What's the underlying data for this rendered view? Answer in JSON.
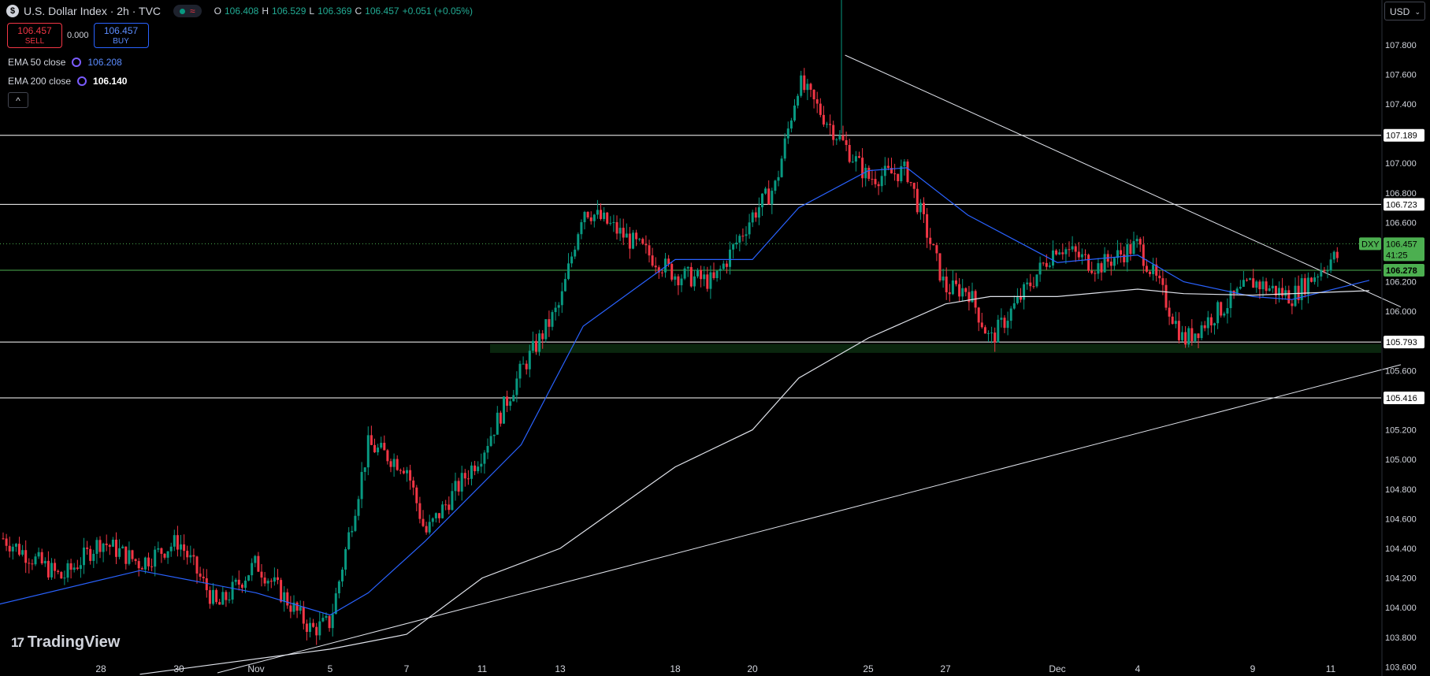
{
  "header": {
    "symbol_icon": "$",
    "title": "U.S. Dollar Index · 2h · TVC",
    "open_label": "O",
    "open": "106.408",
    "high_label": "H",
    "high": "106.529",
    "low_label": "L",
    "low": "106.369",
    "close_label": "C",
    "close": "106.457",
    "change": "+0.051 (+0.05%)"
  },
  "trade": {
    "sell_price": "106.457",
    "sell_label": "SELL",
    "spread": "0.000",
    "buy_price": "106.457",
    "buy_label": "BUY"
  },
  "indicators": [
    {
      "label": "EMA 50 close",
      "value": "106.208",
      "color": "#2962ff"
    },
    {
      "label": "EMA 200 close",
      "value": "106.140",
      "color": "#ffffff"
    }
  ],
  "collapse_glyph": "^",
  "currency": "USD",
  "currency_icon": "chevron-down-icon",
  "logo_text": "TradingView",
  "colors": {
    "up": "#089981",
    "down": "#f23645",
    "ema50": "#2962ff",
    "ema200": "#e0e3eb",
    "bg": "#000000"
  },
  "chart_data": {
    "type": "candlestick",
    "title": "U.S. Dollar Index · 2h · TVC",
    "ylim": [
      103.5,
      107.98
    ],
    "y_ticks": [
      "107.800",
      "107.600",
      "107.400",
      "107.200",
      "107.000",
      "106.800",
      "106.600",
      "106.400",
      "106.200",
      "106.000",
      "105.800",
      "105.600",
      "105.400",
      "105.200",
      "105.000",
      "104.800",
      "104.600",
      "104.400",
      "104.200",
      "104.000",
      "103.800",
      "103.600"
    ],
    "x_labels": [
      "28",
      "30",
      "Nov",
      "5",
      "7",
      "11",
      "13",
      "18",
      "20",
      "25",
      "27",
      "Dec",
      "4",
      "9",
      "11"
    ],
    "last_price": {
      "symbol": "DXY",
      "value": "106.457",
      "countdown": "41:25"
    },
    "horizontal_levels": [
      {
        "value": "107.189",
        "color": "#ffffff"
      },
      {
        "value": "106.723",
        "color": "#ffffff"
      },
      {
        "value": "106.278",
        "color": "#4caf50"
      },
      {
        "value": "105.793",
        "color": "#ffffff"
      },
      {
        "value": "105.416",
        "color": "#ffffff"
      }
    ],
    "trend_lines": [
      {
        "from": [
          "Oct 31",
          103.56
        ],
        "to": [
          "Dec 12",
          105.64
        ]
      },
      {
        "from": [
          "Nov 24",
          107.73
        ],
        "to": [
          "Dec 12",
          106.03
        ]
      }
    ],
    "price_path": [
      [
        "Oct 25",
        104.55
      ],
      [
        "Oct 27",
        104.2
      ],
      [
        "Oct 28",
        104.45
      ],
      [
        "Oct 29",
        104.3
      ],
      [
        "Oct 30",
        104.45
      ],
      [
        "Oct 31",
        104.0
      ],
      [
        "Nov 1",
        104.3
      ],
      [
        "Nov 4",
        103.85
      ],
      [
        "Nov 5",
        103.9
      ],
      [
        "Nov 6",
        105.1
      ],
      [
        "Nov 7",
        104.95
      ],
      [
        "Nov 8",
        104.5
      ],
      [
        "Nov 11",
        105.05
      ],
      [
        "Nov 12",
        105.6
      ],
      [
        "Nov 13",
        106.05
      ],
      [
        "Nov 14",
        106.7
      ],
      [
        "Nov 15",
        106.6
      ],
      [
        "Nov 18",
        106.25
      ],
      [
        "Nov 19",
        106.2
      ],
      [
        "Nov 20",
        106.65
      ],
      [
        "Nov 21",
        106.85
      ],
      [
        "Nov 22",
        107.55
      ],
      [
        "Nov 25",
        106.9
      ],
      [
        "Nov 26",
        106.95
      ],
      [
        "Nov 27",
        106.15
      ],
      [
        "Nov 28",
        106.15
      ],
      [
        "Nov 29",
        105.8
      ],
      [
        "Dec 2",
        106.45
      ],
      [
        "Dec 3",
        106.3
      ],
      [
        "Dec 4",
        106.45
      ],
      [
        "Dec 5",
        106.15
      ],
      [
        "Dec 6",
        105.8
      ],
      [
        "Dec 9",
        106.2
      ],
      [
        "Dec 10",
        106.1
      ],
      [
        "Dec 11",
        106.35
      ],
      [
        "Dec 12",
        106.46
      ]
    ],
    "ema50_path": [
      [
        "Oct 25",
        104.0
      ],
      [
        "Oct 29",
        104.25
      ],
      [
        "Nov 1",
        104.1
      ],
      [
        "Nov 5",
        103.95
      ],
      [
        "Nov 6",
        104.1
      ],
      [
        "Nov 8",
        104.45
      ],
      [
        "Nov 12",
        105.1
      ],
      [
        "Nov 14",
        105.9
      ],
      [
        "Nov 18",
        106.35
      ],
      [
        "Nov 20",
        106.35
      ],
      [
        "Nov 22",
        106.7
      ],
      [
        "Nov 25",
        106.95
      ],
      [
        "Nov 26",
        106.97
      ],
      [
        "Nov 28",
        106.65
      ],
      [
        "Dec 2",
        106.33
      ],
      [
        "Dec 4",
        106.38
      ],
      [
        "Dec 6",
        106.2
      ],
      [
        "Dec 9",
        106.1
      ],
      [
        "Dec 10",
        106.08
      ],
      [
        "Dec 12",
        106.21
      ]
    ],
    "ema200_path": [
      [
        "Oct 29",
        103.55
      ],
      [
        "Nov 5",
        103.72
      ],
      [
        "Nov 7",
        103.82
      ],
      [
        "Nov 11",
        104.2
      ],
      [
        "Nov 13",
        104.4
      ],
      [
        "Nov 18",
        104.95
      ],
      [
        "Nov 20",
        105.2
      ],
      [
        "Nov 22",
        105.55
      ],
      [
        "Nov 25",
        105.82
      ],
      [
        "Nov 27",
        106.05
      ],
      [
        "Nov 29",
        106.1
      ],
      [
        "Dec 2",
        106.1
      ],
      [
        "Dec 4",
        106.15
      ],
      [
        "Dec 6",
        106.12
      ],
      [
        "Dec 9",
        106.11
      ],
      [
        "Dec 12",
        106.14
      ]
    ]
  }
}
